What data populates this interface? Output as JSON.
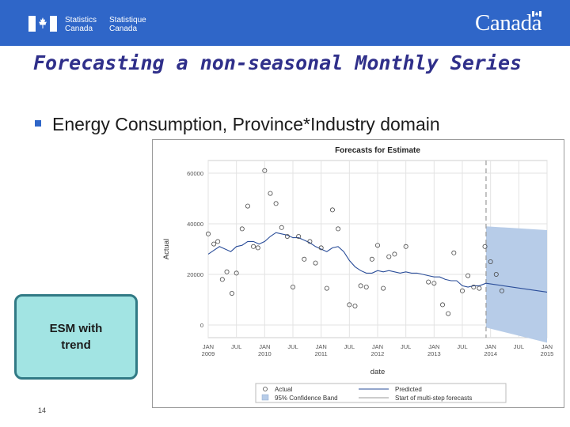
{
  "header": {
    "stats_en_line1": "Statistics",
    "stats_en_line2": "Canada",
    "stats_fr_line1": "Statistique",
    "stats_fr_line2": "Canada",
    "wordmark": "Canada",
    "color": "#2f66c8"
  },
  "slide": {
    "title": "Forecasting a non-seasonal Monthly Series",
    "bullet": "Energy Consumption, Province*Industry domain",
    "esm_line1": "ESM  with",
    "esm_line2": "trend",
    "page_number": "14"
  },
  "chart_data": {
    "type": "line",
    "title": "Forecasts for Estimate",
    "xlabel": "date",
    "ylabel": "Actual",
    "ylim": [
      -5000,
      65000
    ],
    "xlim": [
      2009.0,
      2015.0
    ],
    "yticks": [
      0,
      20000,
      40000,
      60000
    ],
    "ytick_labels": [
      "0",
      "20000",
      "40000",
      "60000"
    ],
    "xtick_labels": [
      {
        "x": 2009.0,
        "l1": "JAN",
        "l2": "2009"
      },
      {
        "x": 2009.5,
        "l1": "JUL",
        "l2": ""
      },
      {
        "x": 2010.0,
        "l1": "JAN",
        "l2": "2010"
      },
      {
        "x": 2010.5,
        "l1": "JUL",
        "l2": ""
      },
      {
        "x": 2011.0,
        "l1": "JAN",
        "l2": "2011"
      },
      {
        "x": 2011.5,
        "l1": "JUL",
        "l2": ""
      },
      {
        "x": 2012.0,
        "l1": "JAN",
        "l2": "2012"
      },
      {
        "x": 2012.5,
        "l1": "JUL",
        "l2": ""
      },
      {
        "x": 2013.0,
        "l1": "JAN",
        "l2": "2013"
      },
      {
        "x": 2013.5,
        "l1": "JUL",
        "l2": ""
      },
      {
        "x": 2014.0,
        "l1": "JAN",
        "l2": "2014"
      },
      {
        "x": 2014.5,
        "l1": "JUL",
        "l2": ""
      },
      {
        "x": 2015.0,
        "l1": "JAN",
        "l2": "2015"
      }
    ],
    "forecast_start": 2013.92,
    "actual": [
      [
        2009.0,
        36000
      ],
      [
        2009.1,
        32000
      ],
      [
        2009.17,
        33000
      ],
      [
        2009.25,
        18000
      ],
      [
        2009.33,
        21000
      ],
      [
        2009.42,
        12500
      ],
      [
        2009.5,
        20500
      ],
      [
        2009.6,
        38000
      ],
      [
        2009.7,
        47000
      ],
      [
        2009.8,
        31000
      ],
      [
        2009.88,
        30500
      ],
      [
        2010.0,
        61000
      ],
      [
        2010.1,
        52000
      ],
      [
        2010.2,
        48000
      ],
      [
        2010.3,
        38500
      ],
      [
        2010.4,
        35000
      ],
      [
        2010.5,
        15000
      ],
      [
        2010.6,
        35000
      ],
      [
        2010.7,
        26000
      ],
      [
        2010.8,
        33000
      ],
      [
        2010.9,
        24500
      ],
      [
        2011.0,
        30500
      ],
      [
        2011.1,
        14500
      ],
      [
        2011.2,
        45500
      ],
      [
        2011.3,
        38000
      ],
      [
        2011.5,
        8000
      ],
      [
        2011.6,
        7500
      ],
      [
        2011.7,
        15500
      ],
      [
        2011.8,
        15000
      ],
      [
        2011.9,
        26000
      ],
      [
        2012.0,
        31500
      ],
      [
        2012.1,
        14500
      ],
      [
        2012.2,
        27000
      ],
      [
        2012.3,
        28000
      ],
      [
        2012.5,
        31000
      ],
      [
        2012.9,
        17000
      ],
      [
        2013.0,
        16500
      ],
      [
        2013.15,
        8000
      ],
      [
        2013.25,
        4500
      ],
      [
        2013.35,
        28500
      ],
      [
        2013.5,
        13500
      ],
      [
        2013.6,
        19500
      ],
      [
        2013.7,
        15000
      ],
      [
        2013.8,
        14500
      ],
      [
        2013.9,
        31000
      ],
      [
        2014.0,
        25000
      ],
      [
        2014.1,
        20000
      ],
      [
        2014.2,
        13500
      ]
    ],
    "predicted": [
      [
        2009.0,
        28000
      ],
      [
        2009.1,
        29500
      ],
      [
        2009.2,
        31000
      ],
      [
        2009.3,
        30000
      ],
      [
        2009.4,
        29000
      ],
      [
        2009.5,
        31000
      ],
      [
        2009.6,
        31500
      ],
      [
        2009.7,
        33000
      ],
      [
        2009.8,
        33000
      ],
      [
        2009.9,
        32000
      ],
      [
        2010.0,
        33000
      ],
      [
        2010.1,
        35000
      ],
      [
        2010.2,
        36500
      ],
      [
        2010.3,
        36000
      ],
      [
        2010.4,
        35500
      ],
      [
        2010.5,
        34500
      ],
      [
        2010.6,
        34500
      ],
      [
        2010.7,
        33500
      ],
      [
        2010.8,
        32500
      ],
      [
        2010.9,
        31000
      ],
      [
        2011.0,
        30000
      ],
      [
        2011.1,
        29000
      ],
      [
        2011.2,
        30500
      ],
      [
        2011.3,
        31000
      ],
      [
        2011.4,
        29000
      ],
      [
        2011.5,
        25500
      ],
      [
        2011.6,
        23000
      ],
      [
        2011.7,
        21500
      ],
      [
        2011.8,
        20500
      ],
      [
        2011.9,
        20500
      ],
      [
        2012.0,
        21500
      ],
      [
        2012.1,
        21000
      ],
      [
        2012.2,
        21500
      ],
      [
        2012.3,
        21000
      ],
      [
        2012.4,
        20500
      ],
      [
        2012.5,
        21000
      ],
      [
        2012.6,
        20500
      ],
      [
        2012.7,
        20500
      ],
      [
        2012.8,
        20000
      ],
      [
        2012.9,
        19500
      ],
      [
        2013.0,
        19000
      ],
      [
        2013.1,
        19000
      ],
      [
        2013.2,
        18000
      ],
      [
        2013.3,
        17500
      ],
      [
        2013.4,
        17500
      ],
      [
        2013.5,
        15500
      ],
      [
        2013.6,
        15000
      ],
      [
        2013.7,
        15500
      ],
      [
        2013.8,
        15500
      ],
      [
        2013.92,
        16500
      ]
    ],
    "forecast": [
      [
        2013.92,
        16500
      ],
      [
        2015.0,
        13000
      ]
    ],
    "band_upper": [
      [
        2013.92,
        39000
      ],
      [
        2015.0,
        37500
      ]
    ],
    "band_lower": [
      [
        2013.92,
        -1000
      ],
      [
        2015.0,
        -7000
      ]
    ],
    "legend": [
      {
        "key": "actual",
        "label": "Actual"
      },
      {
        "key": "predicted",
        "label": "Predicted"
      },
      {
        "key": "band",
        "label": "95% Confidence Band"
      },
      {
        "key": "start",
        "label": "Start of multi-step forecasts"
      }
    ],
    "colors": {
      "actual": "#4a4a4a",
      "predicted": "#2a4d99",
      "band": "#b7cce8",
      "grid": "#e3e3e3",
      "refline": "#9a9a9a"
    }
  }
}
